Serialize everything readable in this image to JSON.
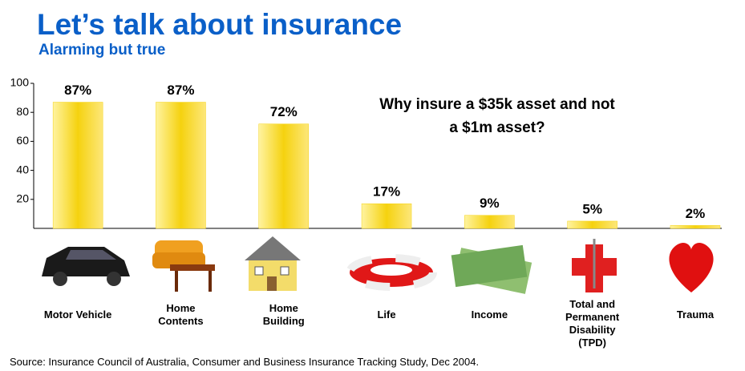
{
  "title": "Let’s talk about insurance",
  "subtitle": "Alarming but true",
  "source": "Source: Insurance Council of Australia, Consumer and Business Insurance Tracking Study, Dec 2004.",
  "chart_data": {
    "type": "bar",
    "annotation": "Why insure a $35k asset and not a $1m asset?",
    "categories": [
      "Motor Vehicle",
      "Home Contents",
      "Home Building",
      "Life",
      "Income",
      "Total and Permanent Disability (TPD)",
      "Trauma"
    ],
    "values": [
      87,
      87,
      72,
      17,
      9,
      5,
      2
    ],
    "value_labels": [
      "87%",
      "87%",
      "72%",
      "17%",
      "9%",
      "5%",
      "2%"
    ],
    "color": "#f5d20f",
    "ylim": [
      0,
      100
    ],
    "yticks": [
      20,
      40,
      60,
      80,
      100
    ],
    "grid": false
  }
}
